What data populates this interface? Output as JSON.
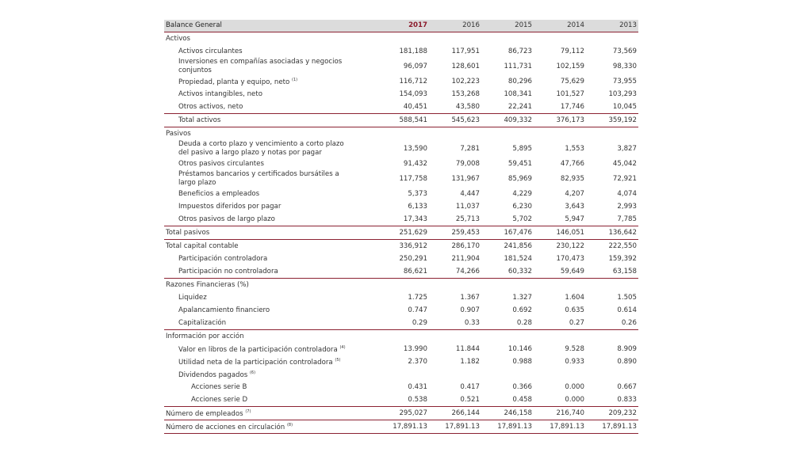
{
  "header": {
    "title": "Balance General",
    "years": [
      "2017",
      "2016",
      "2015",
      "2014",
      "2013"
    ]
  },
  "rows": [
    {
      "label": "Activos"
    },
    {
      "label": "Activos circulantes",
      "values": [
        "181,188",
        "117,951",
        "86,723",
        "79,112",
        "73,569"
      ]
    },
    {
      "label": "Inversiones en compañías asociadas y negocios conjuntos",
      "values": [
        "96,097",
        "128,601",
        "111,731",
        "102,159",
        "98,330"
      ]
    },
    {
      "label": "Propiedad, planta y equipo, neto",
      "note": "(1)",
      "values": [
        "116,712",
        "102,223",
        "80,296",
        "75,629",
        "73,955"
      ]
    },
    {
      "label": "Activos intangibles, neto",
      "values": [
        "154,093",
        "153,268",
        "108,341",
        "101,527",
        "103,293"
      ]
    },
    {
      "label": "Otros activos, neto",
      "values": [
        "40,451",
        "43,580",
        "22,241",
        "17,746",
        "10,045"
      ]
    },
    {
      "label": "Total activos",
      "values": [
        "588,541",
        "545,623",
        "409,332",
        "376,173",
        "359,192"
      ]
    },
    {
      "label": "Pasivos"
    },
    {
      "label": "Deuda a corto plazo y vencimiento a corto plazo del pasivo a largo plazo y notas por pagar",
      "values": [
        "13,590",
        "7,281",
        "5,895",
        "1,553",
        "3,827"
      ]
    },
    {
      "label": "Otros pasivos circulantes",
      "values": [
        "91,432",
        "79,008",
        "59,451",
        "47,766",
        "45,042"
      ]
    },
    {
      "label": "Préstamos bancarios y certificados bursátiles a largo plazo",
      "values": [
        "117,758",
        "131,967",
        "85,969",
        "82,935",
        "72,921"
      ]
    },
    {
      "label": "Beneficios a empleados",
      "values": [
        "5,373",
        "4,447",
        "4,229",
        "4,207",
        "4,074"
      ]
    },
    {
      "label": "Impuestos diferidos por pagar",
      "values": [
        "6,133",
        "11,037",
        "6,230",
        "3,643",
        "2,993"
      ]
    },
    {
      "label": "Otros pasivos de largo plazo",
      "values": [
        "17,343",
        "25,713",
        "5,702",
        "5,947",
        "7,785"
      ]
    },
    {
      "label": "Total pasivos",
      "values": [
        "251,629",
        "259,453",
        "167,476",
        "146,051",
        "136,642"
      ]
    },
    {
      "label": "Total capital contable",
      "values": [
        "336,912",
        "286,170",
        "241,856",
        "230,122",
        "222,550"
      ]
    },
    {
      "label": "Participación controladora",
      "values": [
        "250,291",
        "211,904",
        "181,524",
        "170,473",
        "159,392"
      ]
    },
    {
      "label": "Participación no controladora",
      "values": [
        "86,621",
        "74,266",
        "60,332",
        "59,649",
        "63,158"
      ]
    },
    {
      "label": "Razones Financieras (%)"
    },
    {
      "label": "Liquidez",
      "values": [
        "1.725",
        "1.367",
        "1.327",
        "1.604",
        "1.505"
      ]
    },
    {
      "label": "Apalancamiento financiero",
      "values": [
        "0.747",
        "0.907",
        "0.692",
        "0.635",
        "0.614"
      ]
    },
    {
      "label": "Capitalización",
      "values": [
        "0.29",
        "0.33",
        "0.28",
        "0.27",
        "0.26"
      ]
    },
    {
      "label": "Información por acción"
    },
    {
      "label": "Valor en libros de la participación controladora",
      "note": "(4)",
      "values": [
        "13.990",
        "11.844",
        "10.146",
        "9.528",
        "8.909"
      ]
    },
    {
      "label": "Utilidad neta de la participación controladora",
      "note": "(5)",
      "values": [
        "2.370",
        "1.182",
        "0.988",
        "0.933",
        "0.890"
      ]
    },
    {
      "label": "Dividendos pagados",
      "note": "(6)"
    },
    {
      "label": "Acciones serie B",
      "values": [
        "0.431",
        "0.417",
        "0.366",
        "0.000",
        "0.667"
      ]
    },
    {
      "label": "Acciones serie D",
      "values": [
        "0.538",
        "0.521",
        "0.458",
        "0.000",
        "0.833"
      ]
    },
    {
      "label": "Número de empleados",
      "note": "(7)",
      "values": [
        "295,027",
        "266,144",
        "246,158",
        "216,740",
        "209,232"
      ]
    },
    {
      "label": "Número de acciones en circulación",
      "note": "(8)",
      "values": [
        "17,891.13",
        "17,891.13",
        "17,891.13",
        "17,891.13",
        "17,891.13"
      ]
    }
  ]
}
